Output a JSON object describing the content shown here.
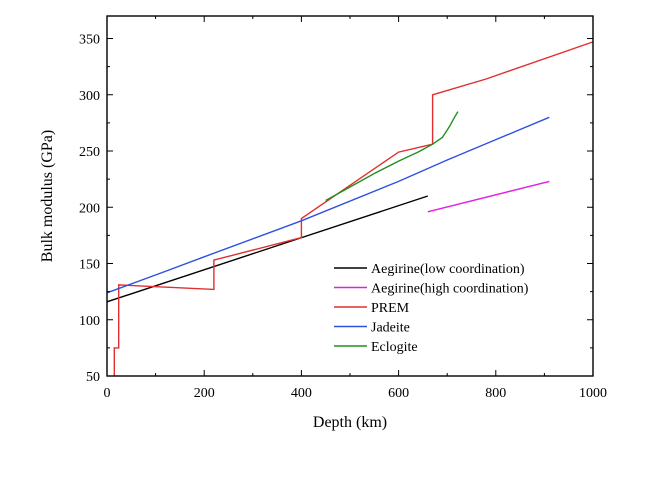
{
  "chart_data": {
    "type": "line",
    "title": "",
    "xlabel": "Depth (km)",
    "ylabel": "Bulk modulus (GPa)",
    "xlim": [
      0,
      1000
    ],
    "ylim": [
      50,
      370
    ],
    "xticks": [
      0,
      200,
      400,
      600,
      800,
      1000
    ],
    "yticks": [
      50,
      100,
      150,
      200,
      250,
      300,
      350
    ],
    "grid": false,
    "legend_position": "bottom-right",
    "series": [
      {
        "name": "Aegirine(low coordination)",
        "color": "#000000",
        "points": [
          [
            0,
            116
          ],
          [
            660,
            210
          ]
        ]
      },
      {
        "name": "Aegirine(high coordination)",
        "color": "#e020e0",
        "points": [
          [
            660,
            196
          ],
          [
            910,
            223
          ]
        ]
      },
      {
        "name": "PREM",
        "color": "#e03030",
        "points": [
          [
            15,
            50
          ],
          [
            15,
            75
          ],
          [
            24,
            75
          ],
          [
            24,
            131
          ],
          [
            220,
            127
          ],
          [
            220,
            153
          ],
          [
            400,
            173
          ],
          [
            400,
            190
          ],
          [
            600,
            249
          ],
          [
            670,
            256
          ],
          [
            670,
            300
          ],
          [
            780,
            314
          ],
          [
            1000,
            347
          ]
        ]
      },
      {
        "name": "Jadeite",
        "color": "#3050e0",
        "points": [
          [
            0,
            124
          ],
          [
            120,
            143
          ],
          [
            200,
            156
          ],
          [
            400,
            188
          ],
          [
            600,
            223
          ],
          [
            700,
            242
          ],
          [
            910,
            280
          ]
        ]
      },
      {
        "name": "Eclogite",
        "color": "#209020",
        "points": [
          [
            450,
            206
          ],
          [
            500,
            218
          ],
          [
            550,
            230
          ],
          [
            600,
            241
          ],
          [
            640,
            249
          ],
          [
            670,
            256
          ],
          [
            690,
            262
          ],
          [
            705,
            272
          ],
          [
            715,
            280
          ],
          [
            722,
            285
          ]
        ]
      }
    ]
  }
}
